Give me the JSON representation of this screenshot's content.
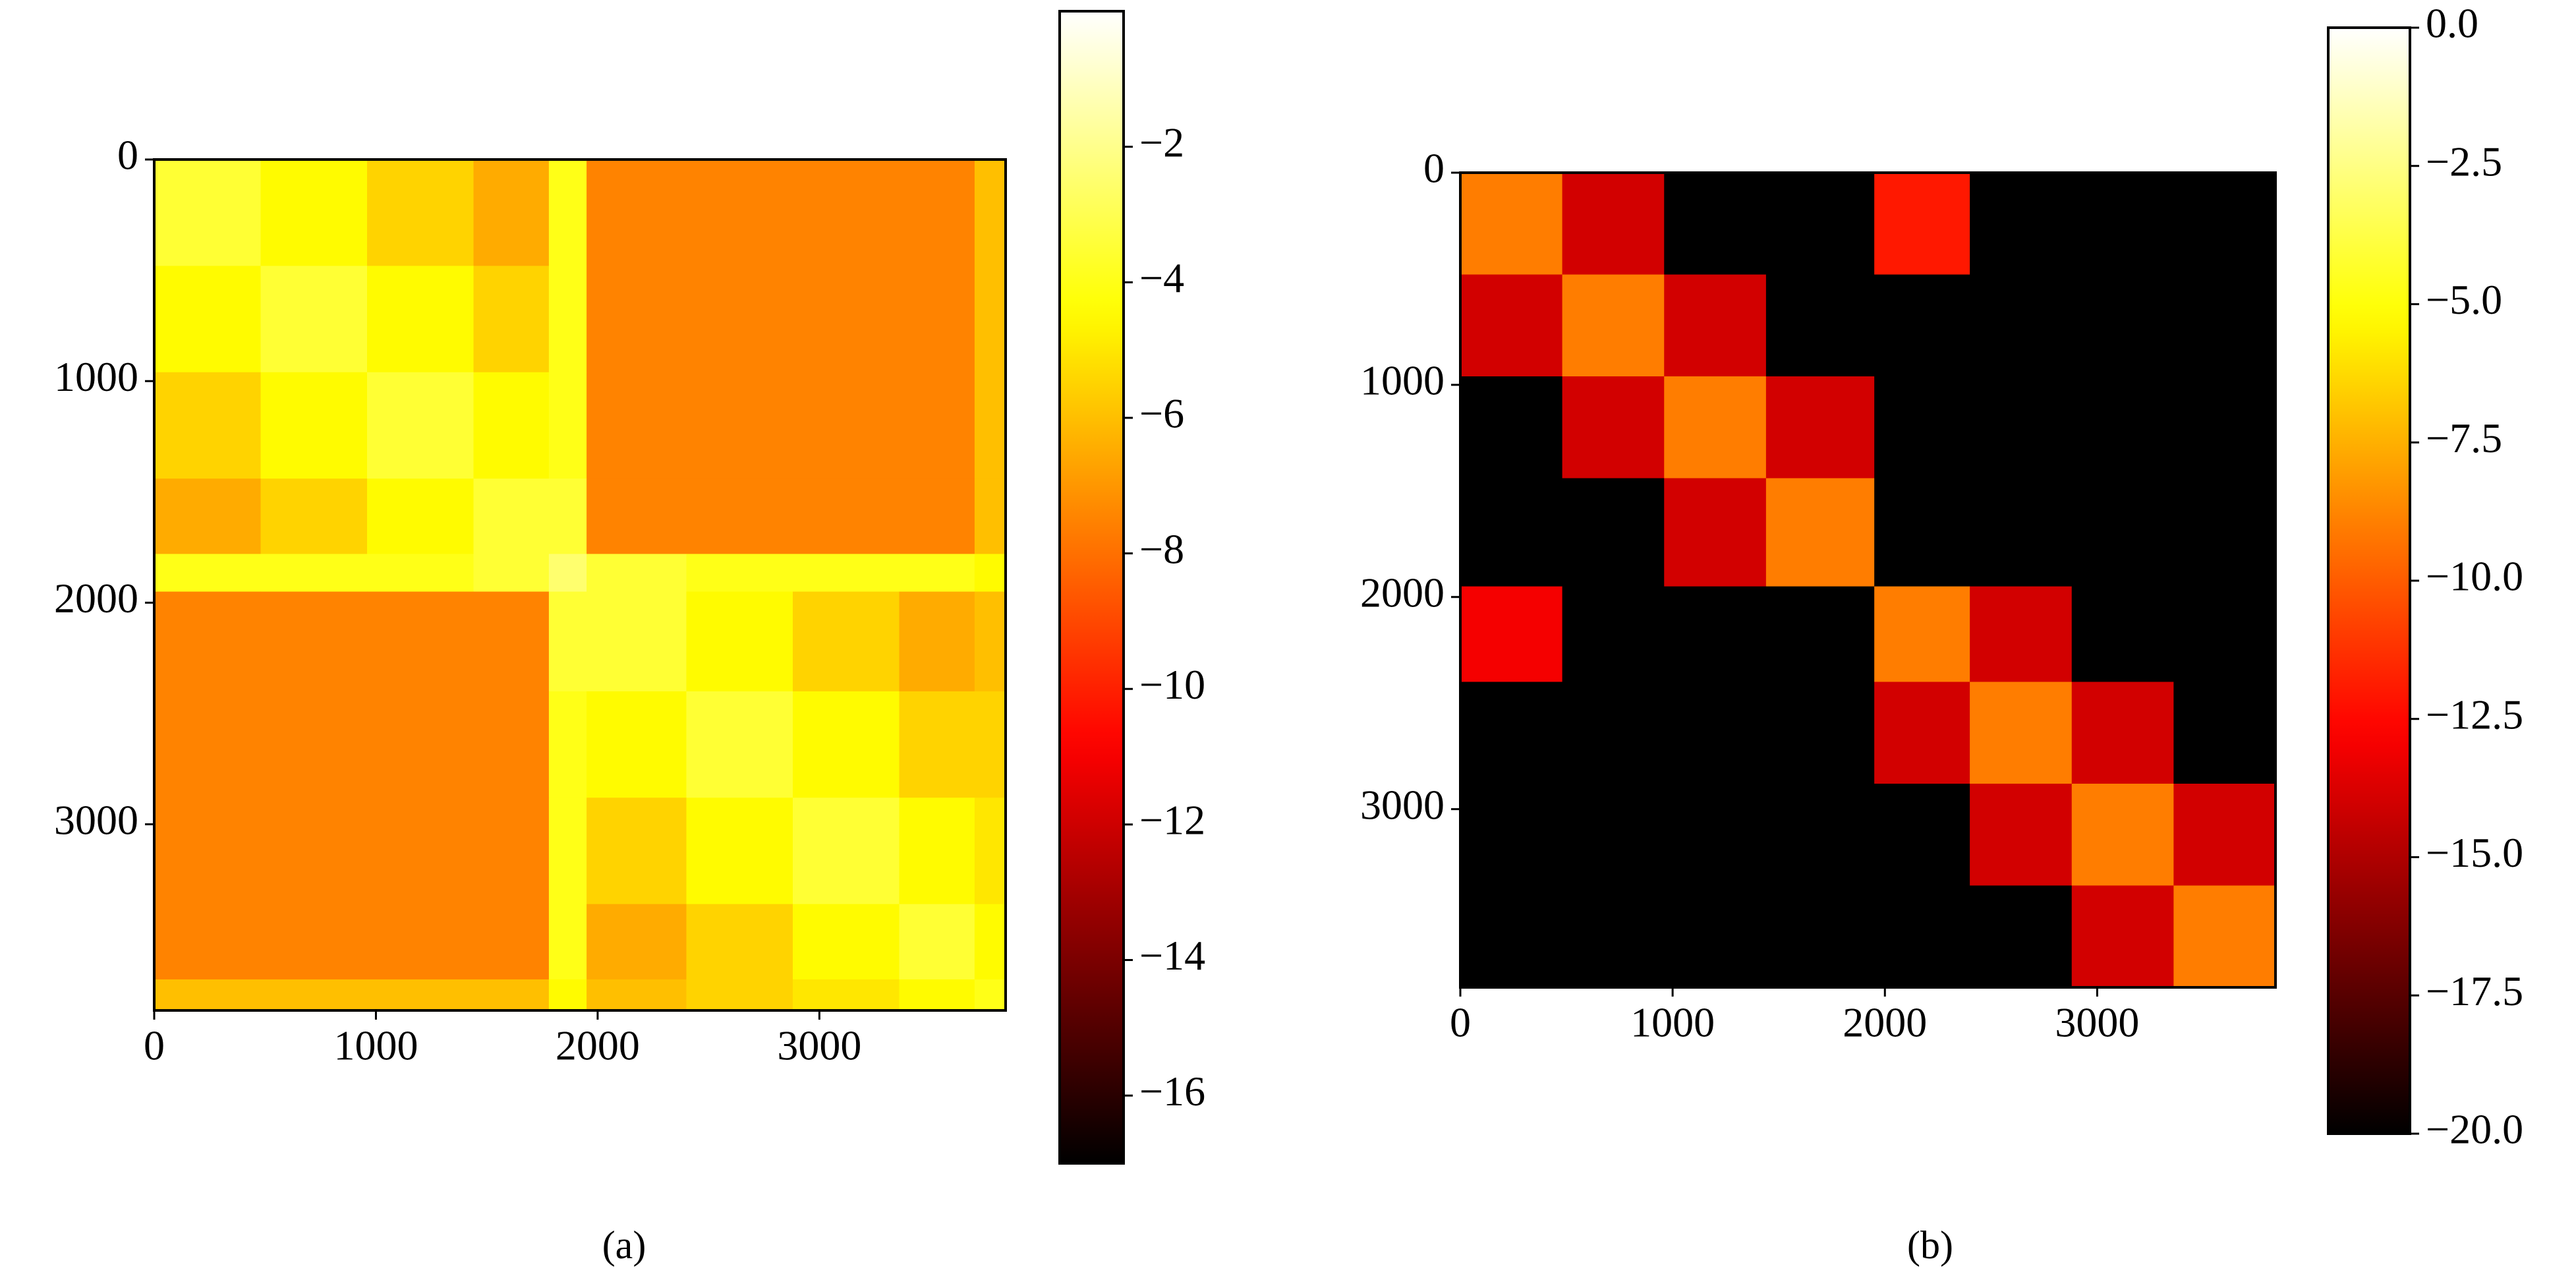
{
  "chart_data": [
    {
      "type": "heatmap",
      "caption": "(a)",
      "colormap": "hot",
      "x_edges": [
        0,
        480,
        960,
        1440,
        1780,
        1950,
        2400,
        2880,
        3360,
        3700,
        3840
      ],
      "y_edges": [
        0,
        480,
        960,
        1440,
        1780,
        1950,
        2400,
        2880,
        3360,
        3700,
        3840
      ],
      "z": [
        [
          -3.5,
          -4.5,
          -5.5,
          -6.5,
          -4.0,
          -7.5,
          -7.5,
          -7.5,
          -7.5,
          -6.0
        ],
        [
          -4.5,
          -3.5,
          -4.5,
          -5.5,
          -4.0,
          -7.5,
          -7.5,
          -7.5,
          -7.5,
          -6.0
        ],
        [
          -5.5,
          -4.5,
          -3.5,
          -4.5,
          -4.0,
          -7.5,
          -7.5,
          -7.5,
          -7.5,
          -6.0
        ],
        [
          -6.5,
          -5.5,
          -4.5,
          -3.5,
          -3.5,
          -7.5,
          -7.5,
          -7.5,
          -7.5,
          -6.0
        ],
        [
          -4.0,
          -4.0,
          -4.0,
          -3.5,
          -2.5,
          -3.5,
          -4.0,
          -4.0,
          -4.0,
          -4.5
        ],
        [
          -7.5,
          -7.5,
          -7.5,
          -7.5,
          -3.5,
          -3.5,
          -4.5,
          -5.5,
          -6.5,
          -6.0
        ],
        [
          -7.5,
          -7.5,
          -7.5,
          -7.5,
          -4.0,
          -4.5,
          -3.5,
          -4.5,
          -5.5,
          -5.5
        ],
        [
          -7.5,
          -7.5,
          -7.5,
          -7.5,
          -4.0,
          -5.5,
          -4.5,
          -3.5,
          -4.5,
          -5.0
        ],
        [
          -7.5,
          -7.5,
          -7.5,
          -7.5,
          -4.0,
          -6.5,
          -5.5,
          -4.5,
          -3.5,
          -4.5
        ],
        [
          -6.0,
          -6.0,
          -6.0,
          -6.0,
          -4.5,
          -6.0,
          -5.5,
          -5.0,
          -4.5,
          -4.0
        ]
      ],
      "xlim": [
        0,
        3840
      ],
      "ylim": [
        3840,
        0
      ],
      "xticks": [
        0,
        1000,
        2000,
        3000
      ],
      "yticks": [
        0,
        1000,
        2000,
        3000
      ],
      "clim": [
        -17,
        0
      ],
      "cticks": [
        {
          "value": -2,
          "label": "−2"
        },
        {
          "value": -4,
          "label": "−4"
        },
        {
          "value": -6,
          "label": "−6"
        },
        {
          "value": -8,
          "label": "−8"
        },
        {
          "value": -10,
          "label": "−10"
        },
        {
          "value": -12,
          "label": "−12"
        },
        {
          "value": -14,
          "label": "−14"
        },
        {
          "value": -16,
          "label": "−16"
        }
      ]
    },
    {
      "type": "heatmap",
      "caption": "(b)",
      "colormap": "hot",
      "x_edges": [
        0,
        480,
        960,
        1440,
        1950,
        2400,
        2880,
        3360,
        3840
      ],
      "y_edges": [
        0,
        480,
        960,
        1440,
        1950,
        2400,
        2880,
        3360,
        3840
      ],
      "z": [
        [
          -9,
          -14,
          -20,
          -20,
          -12,
          -20,
          -20,
          -20
        ],
        [
          -14,
          -9,
          -14,
          -20,
          -20,
          -20,
          -20,
          -20
        ],
        [
          -20,
          -14,
          -9,
          -14,
          -20,
          -20,
          -20,
          -20
        ],
        [
          -20,
          -20,
          -14,
          -9,
          -20,
          -20,
          -20,
          -20
        ],
        [
          -13,
          -20,
          -20,
          -20,
          -9,
          -14,
          -20,
          -20
        ],
        [
          -20,
          -20,
          -20,
          -20,
          -14,
          -9,
          -14,
          -20
        ],
        [
          -20,
          -20,
          -20,
          -20,
          -20,
          -14,
          -9,
          -14
        ],
        [
          -20,
          -20,
          -20,
          -20,
          -20,
          -20,
          -14,
          -9
        ]
      ],
      "xlim": [
        0,
        3840
      ],
      "ylim": [
        3840,
        0
      ],
      "xticks": [
        0,
        1000,
        2000,
        3000
      ],
      "yticks": [
        0,
        1000,
        2000,
        3000
      ],
      "clim": [
        -20,
        0
      ],
      "cticks": [
        {
          "value": 0,
          "label": "0.0"
        },
        {
          "value": -2.5,
          "label": "−2.5"
        },
        {
          "value": -5,
          "label": "−5.0"
        },
        {
          "value": -7.5,
          "label": "−7.5"
        },
        {
          "value": -10,
          "label": "−10.0"
        },
        {
          "value": -12.5,
          "label": "−12.5"
        },
        {
          "value": -15,
          "label": "−15.0"
        },
        {
          "value": -17.5,
          "label": "−17.5"
        },
        {
          "value": -20,
          "label": "−20.0"
        }
      ]
    }
  ]
}
